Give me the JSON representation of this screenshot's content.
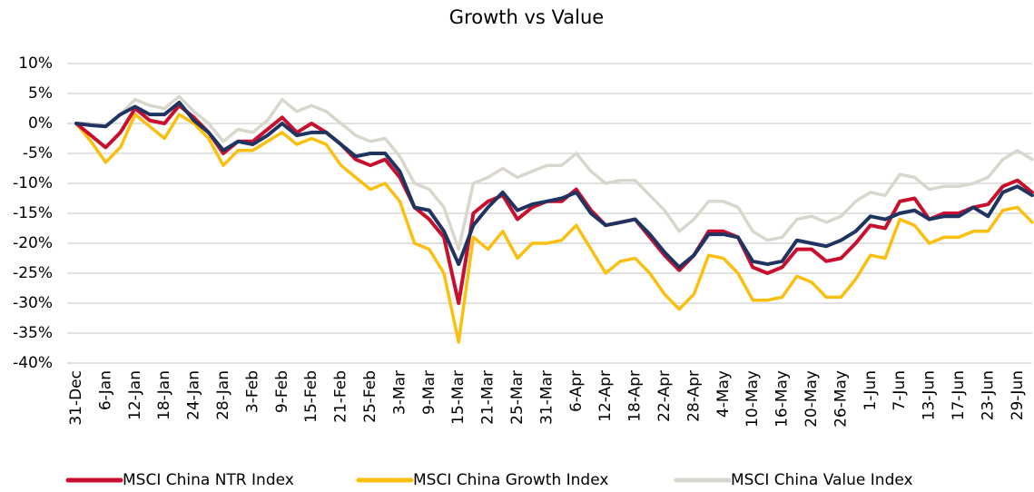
{
  "chart_data": {
    "type": "line",
    "title": "Growth vs Value",
    "categories": [
      "31-Dec",
      null,
      "6-Jan",
      null,
      "12-Jan",
      null,
      "18-Jan",
      null,
      "24-Jan",
      null,
      "28-Jan",
      null,
      "3-Feb",
      null,
      "9-Feb",
      null,
      "15-Feb",
      null,
      "21-Feb",
      null,
      "25-Feb",
      null,
      "3-Mar",
      null,
      "9-Mar",
      null,
      "15-Mar",
      null,
      "21-Mar",
      null,
      "25-Mar",
      null,
      "31-Mar",
      null,
      "6-Apr",
      null,
      "12-Apr",
      null,
      "18-Apr",
      null,
      "22-Apr",
      null,
      "28-Apr",
      null,
      "4-May",
      null,
      "10-May",
      null,
      "16-May",
      null,
      "20-May",
      null,
      "26-May",
      null,
      "1-Jun",
      null,
      "7-Jun",
      null,
      "13-Jun",
      null,
      "17-Jun",
      null,
      "23-Jun",
      null,
      "29-Jun",
      null
    ],
    "series": [
      {
        "name": "MSCI China Value Index",
        "color": "#d9d6cc",
        "values": [
          0,
          0,
          -0.5,
          1.5,
          4,
          3,
          2.5,
          4.5,
          2,
          0,
          -3,
          -1,
          -1.5,
          0.5,
          4,
          2,
          3,
          2,
          0,
          -2,
          -3,
          -2.5,
          -5.5,
          -10,
          -11,
          -14,
          -21,
          -10,
          -9,
          -7.5,
          -9,
          -8,
          -7,
          -7,
          -5,
          -8,
          -10,
          -9.5,
          -9.5,
          -12,
          -14.5,
          -18,
          -16,
          -13,
          -13,
          -14,
          -18,
          -19.5,
          -19,
          -16,
          -15.5,
          -16.5,
          -15.5,
          -13,
          -11.5,
          -12,
          -8.5,
          -9,
          -11,
          -10.5,
          -10.5,
          -10,
          -9,
          -6,
          -4.5,
          -6
        ]
      },
      {
        "name": "MSCI China Growth Index",
        "color": "#fbbf0f",
        "values": [
          0,
          -3,
          -6.5,
          -4,
          1.5,
          -0.5,
          -2.5,
          1.5,
          0,
          -2.5,
          -7,
          -4.5,
          -4.5,
          -3,
          -1.5,
          -3.5,
          -2.5,
          -3.5,
          -7,
          -9,
          -11,
          -10,
          -13,
          -20,
          -21,
          -25,
          -36.5,
          -19,
          -21,
          -18,
          -22.5,
          -20,
          -20,
          -19.5,
          -17,
          -21,
          -25,
          -23,
          -22.5,
          -25,
          -28.5,
          -31,
          -28.5,
          -22,
          -22.5,
          -25,
          -29.5,
          -29.5,
          -29,
          -25.5,
          -26.5,
          -29,
          -29,
          -26,
          -22,
          -22.5,
          -16,
          -17,
          -20,
          -19,
          -19,
          -18,
          -18,
          -14.5,
          -14,
          -16.5
        ]
      },
      {
        "name": "MSCI China NTR Index",
        "color": "#c8102e",
        "values": [
          0,
          -2,
          -4,
          -1.5,
          2.5,
          0.5,
          0,
          3,
          1,
          -1.5,
          -5,
          -3,
          -3,
          -1,
          1,
          -1.5,
          0,
          -1.5,
          -3.5,
          -6,
          -7,
          -6,
          -9,
          -14,
          -16,
          -19,
          -30,
          -15,
          -13,
          -12,
          -16,
          -14,
          -13,
          -13,
          -11,
          -14.5,
          -17,
          -16.5,
          -16,
          -19,
          -22,
          -24.5,
          -22,
          -18,
          -18,
          -19,
          -24,
          -25,
          -24,
          -21,
          -21,
          -23,
          -22.5,
          -20,
          -17,
          -17.5,
          -13,
          -12.5,
          -16,
          -15,
          -15,
          -14,
          -13.5,
          -10.5,
          -9.5,
          -11.5
        ]
      },
      {
        "color": "#1f3461",
        "values": [
          0,
          -0.3,
          -0.5,
          1.5,
          2.8,
          1.5,
          1.5,
          3.5,
          0.5,
          -1.5,
          -4.5,
          -3,
          -3.5,
          -2,
          0,
          -2,
          -1.5,
          -1.5,
          -3.5,
          -5.5,
          -5,
          -5,
          -8,
          -14,
          -14.5,
          -18,
          -23.5,
          -17,
          -14,
          -11.5,
          -14.5,
          -13.5,
          -13,
          -12.5,
          -11.5,
          -15,
          -17,
          -16.5,
          -16,
          -18.5,
          -21.5,
          -24,
          -22,
          -18.5,
          -18.5,
          -19,
          -23,
          -23.5,
          -23,
          -19.5,
          -20,
          -20.5,
          -19.5,
          -18,
          -15.5,
          -16,
          -15,
          -14.5,
          -16,
          -15.5,
          -15.5,
          -14,
          -15.5,
          -11.5,
          -10.5,
          -12
        ]
      }
    ],
    "ylim": [
      -40,
      10
    ],
    "yticks": [
      {
        "value": -40,
        "label": "-40%"
      },
      {
        "value": -35,
        "label": "-35%"
      },
      {
        "value": -30,
        "label": "-30%"
      },
      {
        "value": -25,
        "label": "-25%"
      },
      {
        "value": -20,
        "label": "-20%"
      },
      {
        "value": -15,
        "label": "-15%"
      },
      {
        "value": -10,
        "label": "-10%"
      },
      {
        "value": -5,
        "label": "-5%"
      },
      {
        "value": 0,
        "label": "0%"
      },
      {
        "value": 5,
        "label": "5%"
      },
      {
        "value": 10,
        "label": "10%"
      }
    ],
    "grid": true,
    "legend": "bottom"
  }
}
